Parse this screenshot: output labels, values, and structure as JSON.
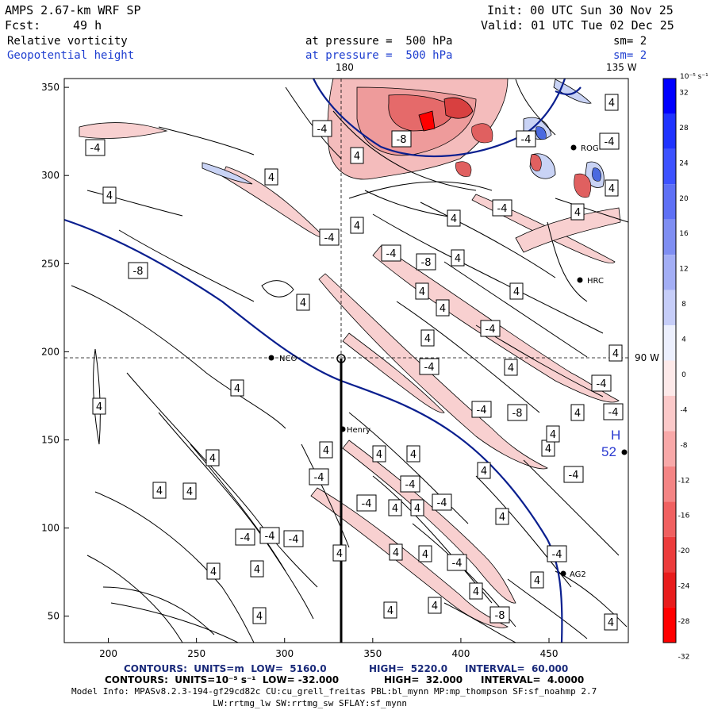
{
  "header": {
    "model": "AMPS 2.67-km WRF SP",
    "init": "Init: 00 UTC Sun 30 Nov 25",
    "fcst_label": "Fcst:",
    "fcst_value": "49 h",
    "valid": "Valid: 01 UTC Tue 02 Dec 25",
    "field1": "Relative vorticity",
    "field1_level": "at pressure =  500 hPa",
    "field1_sm": "sm= 2",
    "field2": "Geopotential height",
    "field2_level": "at pressure =  500 hPa",
    "field2_sm": "sm= 2"
  },
  "map_labels": {
    "meridian_top": "180",
    "meridian_right_top": "135 W",
    "meridian_right": "90 W",
    "high_letter": "H",
    "high_value": "52"
  },
  "x_ticks": [
    "200",
    "250",
    "300",
    "350",
    "400",
    "450"
  ],
  "y_ticks": [
    "50",
    "100",
    "150",
    "200",
    "250",
    "300",
    "350"
  ],
  "stations": [
    {
      "name": "NCO"
    },
    {
      "name": "Henry"
    },
    {
      "name": "HRC"
    },
    {
      "name": "ROG"
    },
    {
      "name": "AG2"
    }
  ],
  "colorbar": {
    "unit": "10⁻⁵ s⁻¹",
    "labels": [
      "32",
      "28",
      "24",
      "20",
      "16",
      "12",
      "8",
      "4",
      "0",
      "-4",
      "-8",
      "-12",
      "-16",
      "-20",
      "-24",
      "-28",
      "-32"
    ]
  },
  "contour_labels": [
    "-4",
    "4",
    "-8",
    "4",
    "4",
    "-4",
    "4",
    "-8",
    "-4",
    "4",
    "4",
    "-8",
    "-4",
    "4",
    "4",
    "-4",
    "-4",
    "4",
    "4",
    "-4",
    "4",
    "-4",
    "4",
    "4",
    "4",
    "-4",
    "-4",
    "4",
    "4",
    "-4",
    "-8",
    "4",
    "-4",
    "4",
    "-4",
    "4",
    "4",
    "-4",
    "-4",
    "4",
    "4",
    "4",
    "4",
    "-4",
    "4",
    "-4",
    "4",
    "-4",
    "4",
    "4",
    "4",
    "4",
    "-8",
    "-4",
    "4",
    "4",
    "4",
    "4",
    "4",
    "4",
    "-4",
    "4",
    "-4",
    "-4",
    "4",
    "4",
    "4",
    "4",
    "4"
  ],
  "footer": {
    "line1_a": "CONTOURS:  UNITS=m  LOW=  5160.0",
    "line1_b": "HIGH=  5220.0",
    "line1_c": "INTERVAL=  60.000",
    "line2_a": "CONTOURS:  UNITS=10⁻⁵ s⁻¹  LOW= -32.000",
    "line2_b": "HIGH=  32.000",
    "line2_c": "INTERVAL=  4.0000",
    "line3": "Model Info: MPASv8.2.3-194-gf29cd82c CU:cu_grell_freitas PBL:bl_mynn MP:mp_thompson SF:sf_noahmp 2.7",
    "line4": "LW:rrtmg_lw SW:rrtmg_sw SFLAY:sf_mynn"
  },
  "colors": {
    "positive": "#0000ff",
    "negative": "#ff0000",
    "height_contour": "#0a1f8f"
  }
}
